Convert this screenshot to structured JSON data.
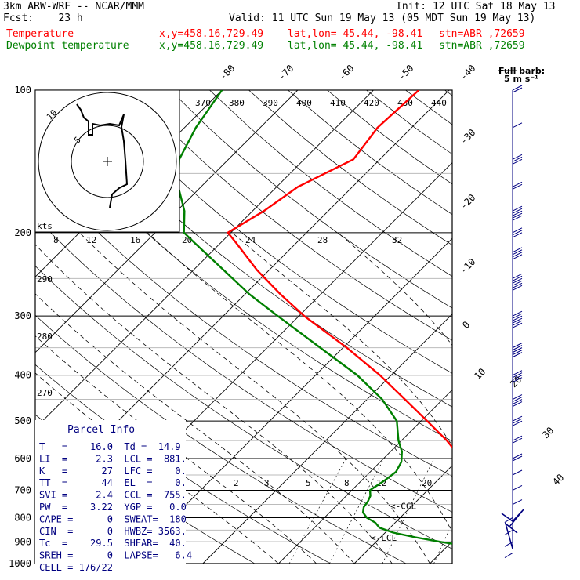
{
  "header": {
    "model": "3km ARW-WRF -- NCAR/MMM",
    "init": "Init: 12 UTC Sat 18 May 13",
    "fcst": "Fcst:    23 h",
    "valid": "Valid: 11 UTC Sun 19 May 13 (05 MDT Sun 19 May 13)",
    "temp_label": "Temperature",
    "dew_label": "Dewpoint temperature",
    "xy": "x,y=458.16,729.49",
    "latlon": "lat,lon= 45.44, -98.41",
    "stn": "stn=ABR ,72659"
  },
  "colors": {
    "temperature": "#ff0000",
    "dewpoint": "#008000",
    "text_blue": "#000080",
    "wind": "#000080"
  },
  "barb_legend": {
    "title": "Full barb:",
    "value": "5 m s⁻¹"
  },
  "chart_data": {
    "type": "line",
    "subtype": "skew-T log-p",
    "y_axis": {
      "label": "pressure (hPa)",
      "ticks": [
        100,
        200,
        300,
        400,
        500,
        600,
        700,
        800,
        900,
        1000
      ],
      "scale": "log",
      "ylim": [
        1000,
        100
      ]
    },
    "isotherm_labels": [
      "-80",
      "-70",
      "-60",
      "-50",
      "-40",
      "-30",
      "-20",
      "-10",
      "0",
      "10",
      "20",
      "30",
      "40"
    ],
    "theta_labels": [
      "370",
      "380",
      "390",
      "400",
      "410",
      "420",
      "430",
      "440"
    ],
    "theta_labels_left": [
      "290",
      "280",
      "270"
    ],
    "mixing_ratio_labels": [
      "2",
      "3",
      "5",
      "8",
      "12",
      "20"
    ],
    "theta_e_labels": [
      "8",
      "12",
      "16",
      "20",
      "24",
      "28",
      "32"
    ],
    "series": [
      {
        "name": "Temperature",
        "color": "#ff0000",
        "p": [
          945,
          930,
          915,
          900,
          880,
          860,
          840,
          820,
          800,
          780,
          760,
          740,
          720,
          700,
          670,
          640,
          610,
          580,
          550,
          500,
          450,
          400,
          350,
          300,
          270,
          240,
          210,
          200,
          180,
          160,
          140,
          120,
          100
        ],
        "t": [
          15.2,
          14.6,
          13.8,
          13.4,
          14.6,
          15.4,
          15.6,
          14.2,
          12.6,
          11.4,
          10.4,
          9.2,
          8.0,
          6.6,
          5.2,
          3.3,
          1.2,
          -1.4,
          -4.0,
          -9.2,
          -15.0,
          -21.5,
          -29.5,
          -39.3,
          -45.3,
          -51.6,
          -58.0,
          -60.4,
          -58.5,
          -57.2,
          -53.5,
          -54.5,
          -54.0
        ]
      },
      {
        "name": "Dewpoint temperature",
        "color": "#008000",
        "p": [
          945,
          930,
          915,
          900,
          880,
          860,
          840,
          820,
          800,
          780,
          760,
          740,
          720,
          700,
          670,
          640,
          610,
          580,
          550,
          500,
          450,
          400,
          350,
          300,
          270,
          240,
          210,
          200,
          180,
          160,
          140,
          120,
          100
        ],
        "t": [
          14.9,
          13.4,
          11.8,
          8.6,
          4.6,
          1.0,
          -1.4,
          -2.6,
          -4.4,
          -5.6,
          -6.2,
          -6.4,
          -6.8,
          -7.6,
          -7.0,
          -6.6,
          -7.2,
          -8.5,
          -10.4,
          -13.2,
          -18.0,
          -24.5,
          -33.0,
          -42.8,
          -49.4,
          -56.0,
          -63.5,
          -66.2,
          -69.0,
          -73.0,
          -76.5,
          -78.5,
          -80.0
        ]
      }
    ],
    "annotations": [
      {
        "text": "<-CCL",
        "p": 755
      },
      {
        "text": "<-LCL",
        "p": 881
      }
    ],
    "wind": {
      "p": [
        100,
        120,
        140,
        160,
        180,
        200,
        220,
        250,
        300,
        350,
        400,
        450,
        500,
        550,
        600,
        650,
        700,
        750,
        800,
        850,
        900,
        950
      ],
      "speed_ms": [
        10,
        5,
        15,
        10,
        25,
        15,
        20,
        30,
        30,
        25,
        22,
        20,
        16,
        14,
        12,
        8,
        6,
        5,
        4,
        3,
        2,
        2
      ]
    }
  },
  "hodograph": {
    "units": "kts",
    "ring_labels": [
      "5",
      "10"
    ]
  },
  "parcel": {
    "title": "Parcel Info",
    "lines": [
      "T   =    16.0  Td =  14.9",
      "LI  =     2.3  LCL =  881.",
      "K   =      27  LFC =    0.",
      "TT  =      44  EL  =    0.",
      "SVI =     2.4  CCL =  755.",
      "PW  =    3.22  YGP =   0.0",
      "CAPE =      0  SWEAT=  180",
      "CIN  =      0  HWBZ= 3563.",
      "Tc  =    29.5  SHEAR=  40.",
      "SREH =      0  LAPSE=   6.4",
      "CELL = 176/22"
    ]
  }
}
